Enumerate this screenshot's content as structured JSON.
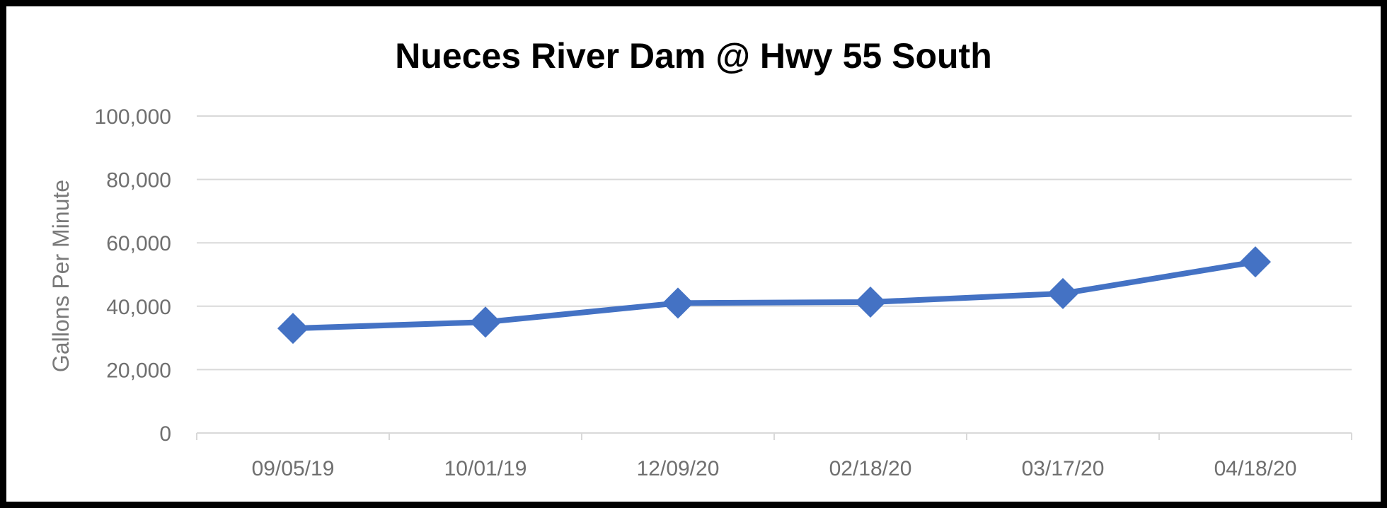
{
  "chart_data": {
    "type": "line",
    "title": "Nueces River Dam @ Hwy 55 South",
    "xlabel": "",
    "ylabel": "Gallons Per Minute",
    "categories": [
      "09/05/19",
      "10/01/19",
      "12/09/20",
      "02/18/20",
      "03/17/20",
      "04/18/20"
    ],
    "series": [
      {
        "values": [
          33000,
          35000,
          41000,
          41300,
          44000,
          54000
        ]
      }
    ],
    "ylim": [
      0,
      100000
    ],
    "yticks": [
      0,
      20000,
      40000,
      60000,
      80000,
      100000
    ],
    "ytick_labels": [
      "0",
      "20,000",
      "40,000",
      "60,000",
      "80,000",
      "100,000"
    ],
    "grid": true,
    "legend": "none",
    "marker": "diamond",
    "colors": {
      "series": "#4472C4",
      "grid": "#d9d9d9",
      "tick_text": "#6f6f6f",
      "border": "#000000"
    }
  }
}
